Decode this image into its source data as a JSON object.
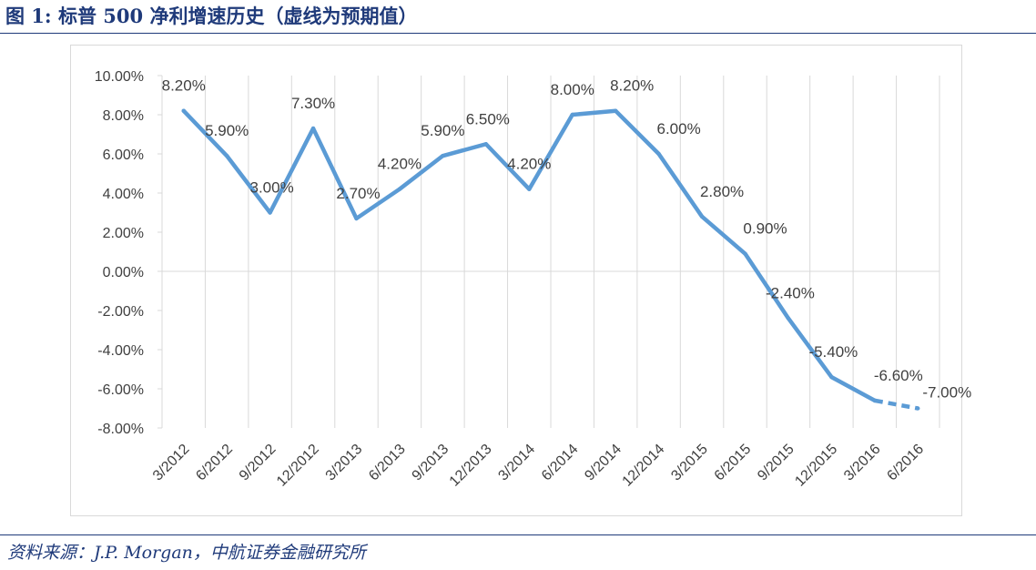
{
  "figure": {
    "title": "图 1: 标普 500 净利增速历史（虚线为预期值）",
    "source": "资料来源：J.P. Morgan，中航证券金融研究所"
  },
  "chart_data": {
    "type": "line",
    "title": "",
    "xlabel": "",
    "ylabel": "",
    "categories": [
      "3/2012",
      "6/2012",
      "9/2012",
      "12/2012",
      "3/2013",
      "6/2013",
      "9/2013",
      "12/2013",
      "3/2014",
      "6/2014",
      "9/2014",
      "12/2014",
      "3/2015",
      "6/2015",
      "9/2015",
      "12/2015",
      "3/2016",
      "6/2016"
    ],
    "values": [
      8.2,
      5.9,
      3.0,
      7.3,
      2.7,
      4.2,
      5.9,
      6.5,
      4.2,
      8.0,
      8.2,
      6.0,
      2.8,
      0.9,
      -2.4,
      -5.4,
      -6.6,
      -7.0
    ],
    "data_labels": [
      "8.20%",
      "5.90%",
      "3.00%",
      "7.30%",
      "2.70%",
      "4.20%",
      "5.90%",
      "6.50%",
      "4.20%",
      "8.00%",
      "8.20%",
      "6.00%",
      "2.80%",
      "0.90%",
      "-2.40%",
      "-5.40%",
      "-6.60%",
      "-7.00%"
    ],
    "ylim": [
      -8,
      10
    ],
    "y_ticks": [
      10,
      8,
      6,
      4,
      2,
      0,
      -2,
      -4,
      -6,
      -8
    ],
    "y_tick_labels": [
      "10.00%",
      "8.00%",
      "6.00%",
      "4.00%",
      "2.00%",
      "0.00%",
      "-2.00%",
      "-4.00%",
      "-6.00%",
      "-8.00%"
    ],
    "dashed_from_index": 16,
    "grid": "vertical",
    "legend": "none",
    "line_color": "#5b9bd5",
    "grid_color": "#d9d9d9"
  }
}
